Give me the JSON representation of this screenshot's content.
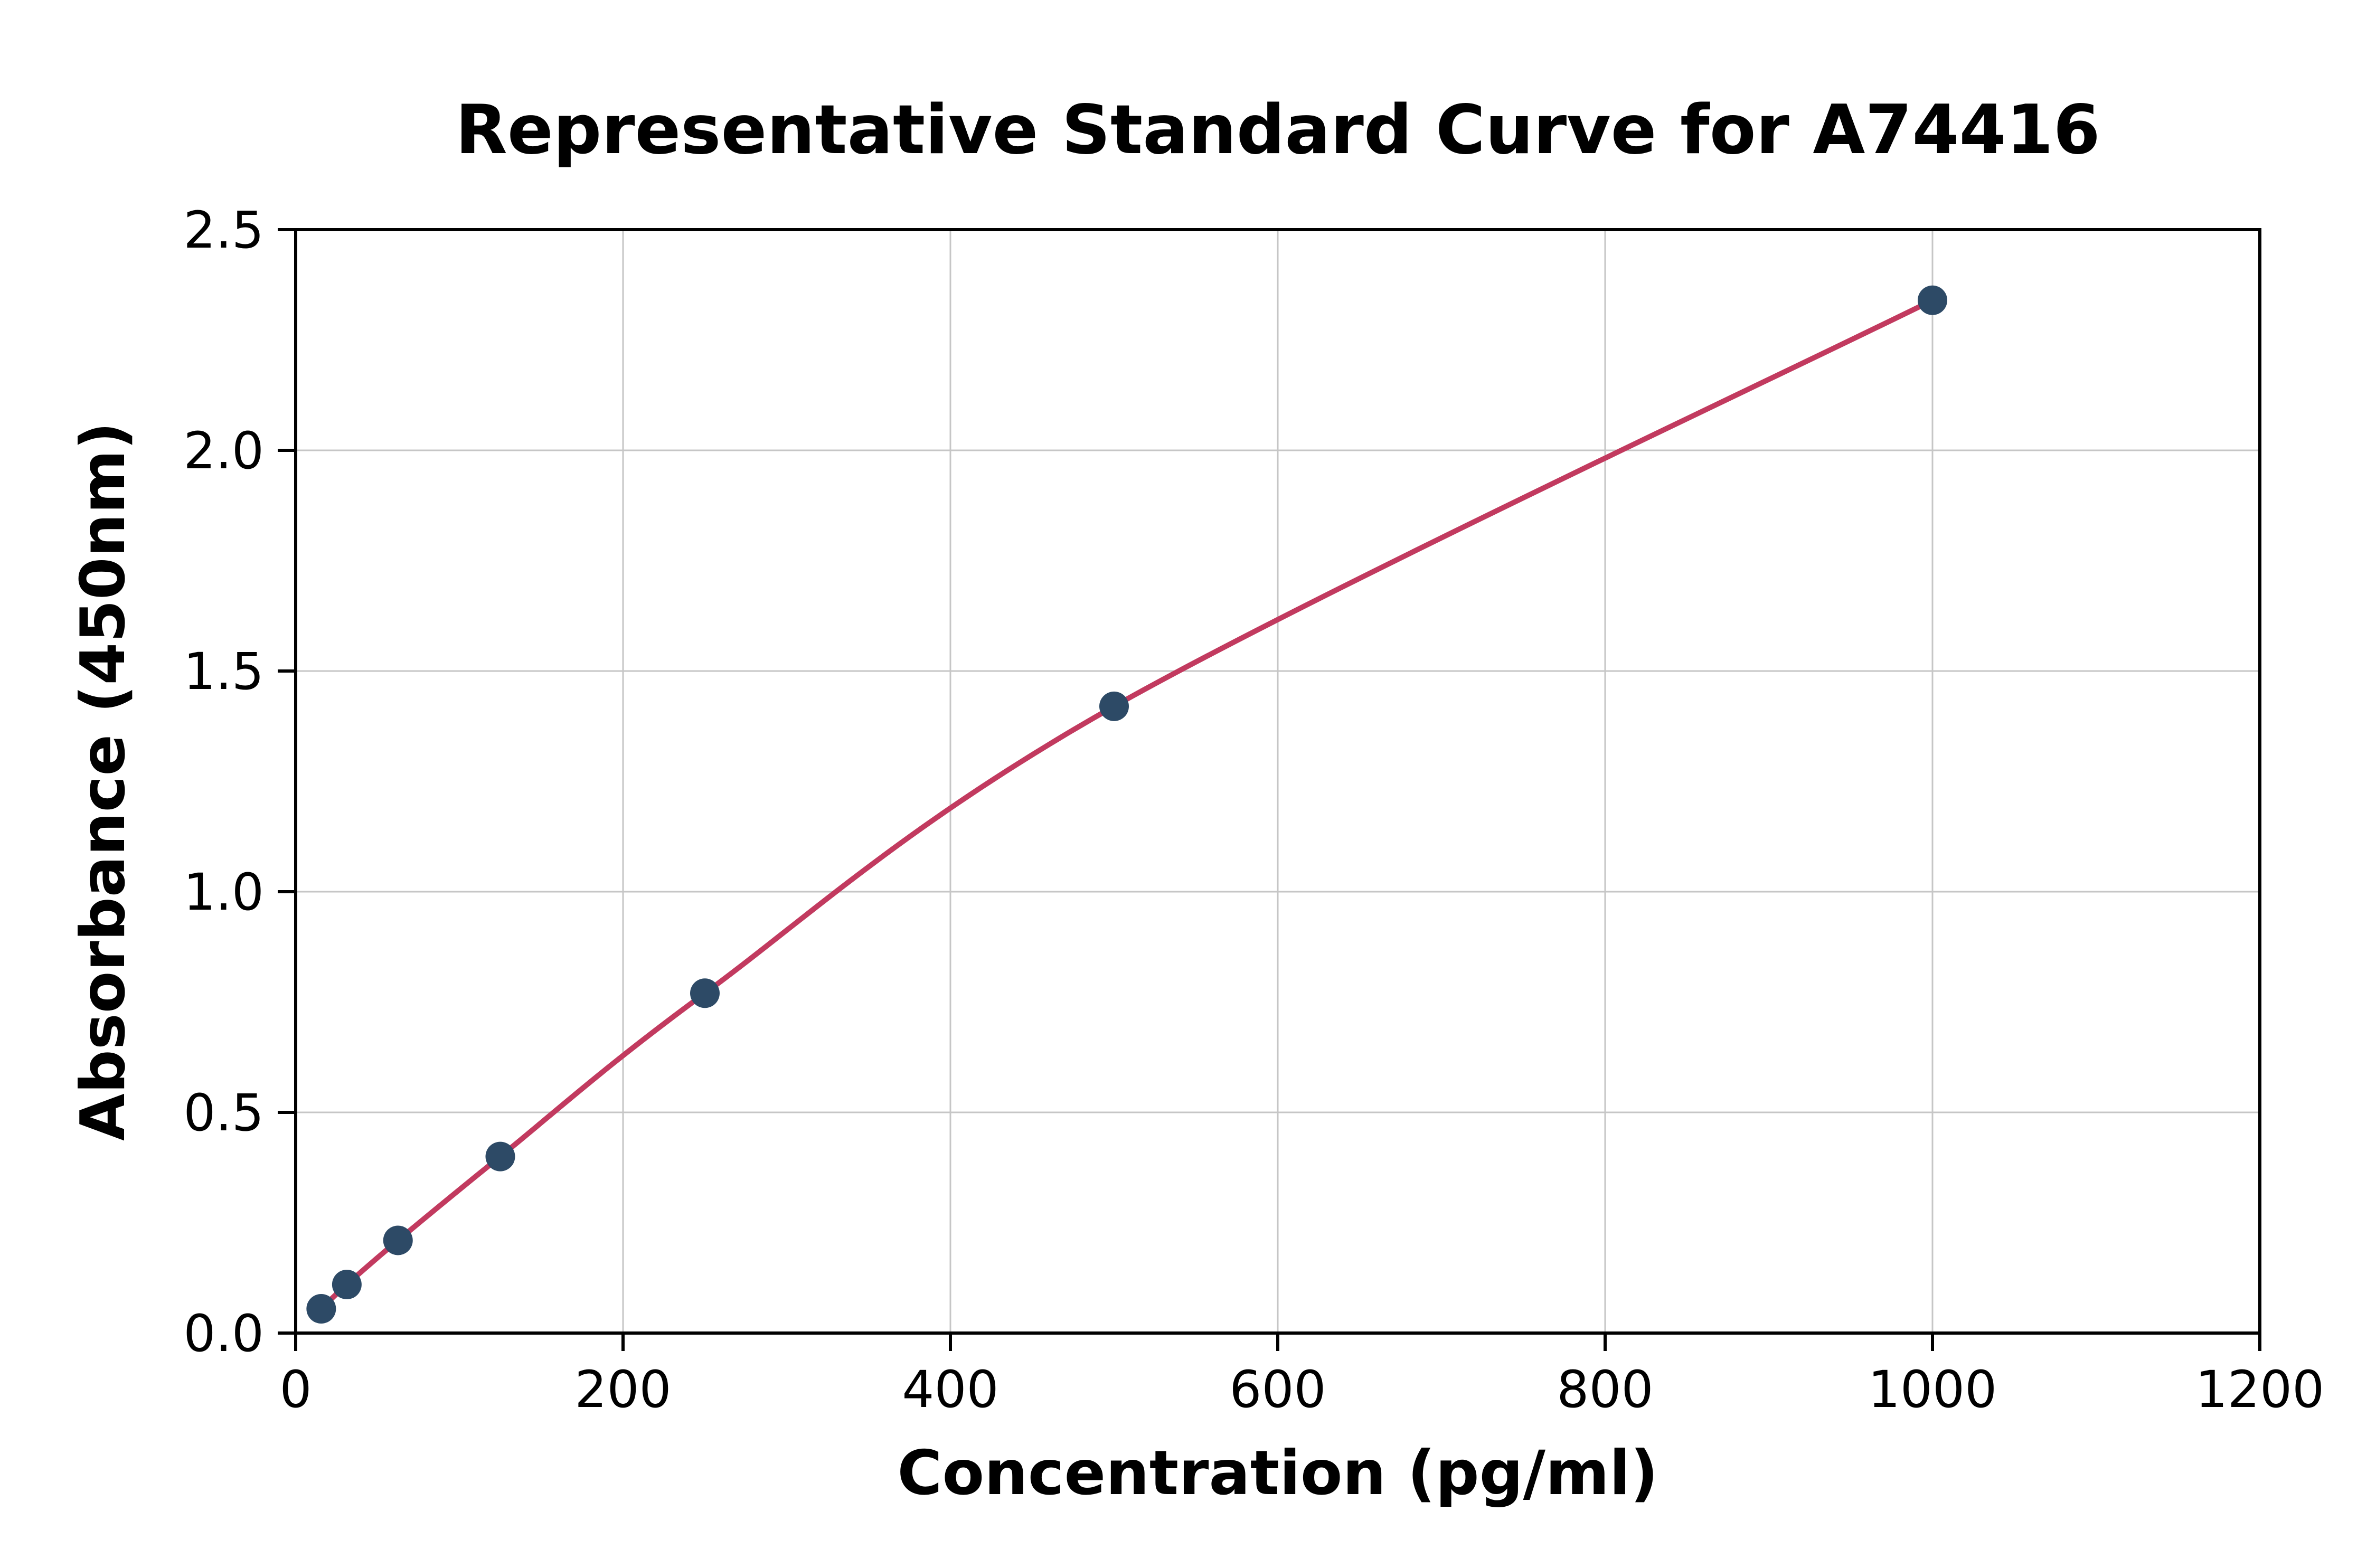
{
  "chart_data": {
    "type": "line",
    "title": "Representative Standard Curve for A74416",
    "xlabel": "Concentration (pg/ml)",
    "ylabel": "Absorbance (450nm)",
    "xlim": [
      0,
      1200
    ],
    "ylim": [
      0,
      2.5
    ],
    "xticks": [
      0,
      200,
      400,
      600,
      800,
      1000,
      1200
    ],
    "xtick_labels": [
      "0",
      "200",
      "400",
      "600",
      "800",
      "1000",
      "1200"
    ],
    "yticks": [
      0,
      0.5,
      1.0,
      1.5,
      2.0,
      2.5
    ],
    "ytick_labels": [
      "0.0",
      "0.5",
      "1.0",
      "1.5",
      "2.0",
      "2.5"
    ],
    "grid": true,
    "legend_position": "none",
    "series": [
      {
        "name": "standard-curve",
        "points": [
          {
            "x": 15.6,
            "y": 0.055
          },
          {
            "x": 31.25,
            "y": 0.11
          },
          {
            "x": 62.5,
            "y": 0.21
          },
          {
            "x": 125,
            "y": 0.4
          },
          {
            "x": 250,
            "y": 0.77
          },
          {
            "x": 500,
            "y": 1.42
          },
          {
            "x": 1000,
            "y": 2.34
          }
        ]
      }
    ],
    "colors": {
      "line": "#c23a5f",
      "marker": "#2d4a66",
      "grid": "#c6c6c6",
      "spine": "#000000",
      "background": "#ffffff"
    }
  }
}
